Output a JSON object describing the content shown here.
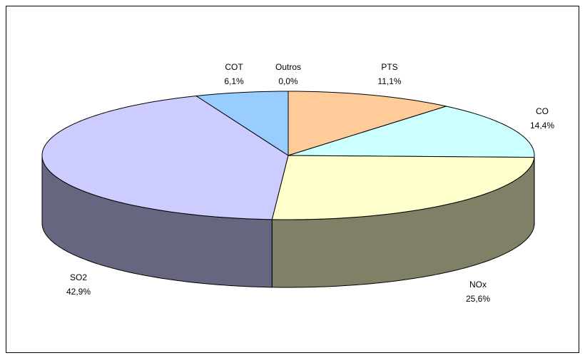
{
  "chart_data": {
    "type": "pie3d",
    "categories": [
      "PTS",
      "CO",
      "NOx",
      "SO2",
      "COT",
      "Outros"
    ],
    "values": [
      11.1,
      14.4,
      25.6,
      42.9,
      6.1,
      0.0
    ],
    "value_labels": [
      "11,1%",
      "14,4%",
      "25,6%",
      "42,9%",
      "6,1%",
      "0,0%"
    ],
    "colors": [
      "#ffcc99",
      "#ccffff",
      "#ffffcc",
      "#ccccff",
      "#99ccff",
      "#ff99cc"
    ]
  }
}
